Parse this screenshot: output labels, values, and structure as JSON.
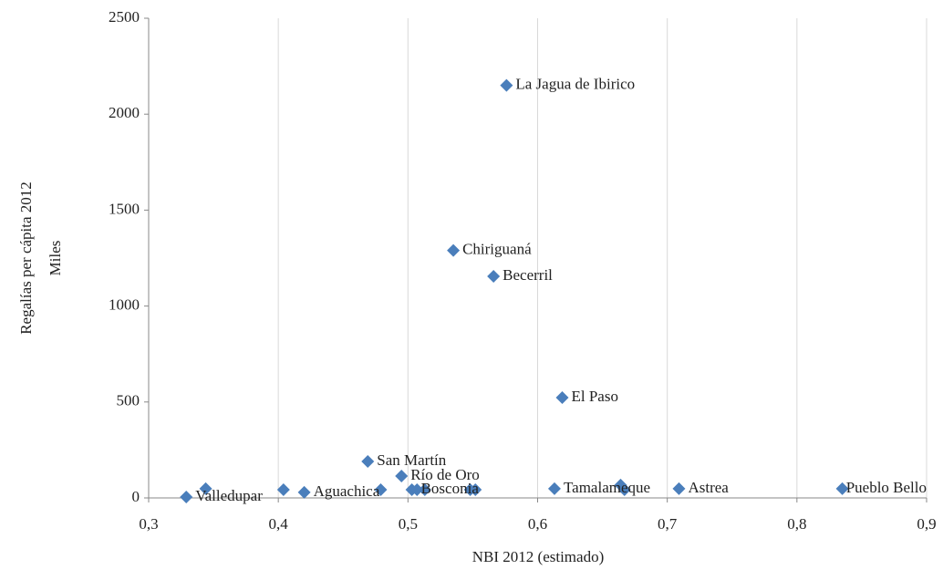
{
  "chart_data": {
    "type": "scatter",
    "x_label": "NBI 2012 (estimado)",
    "y_label": [
      "Regalías per cápita 2012",
      "Miles"
    ],
    "xlim": [
      0.3,
      0.9
    ],
    "xticks": [
      {
        "value": 0.3,
        "label": "0,3"
      },
      {
        "value": 0.4,
        "label": "0,4"
      },
      {
        "value": 0.5,
        "label": "0,5"
      },
      {
        "value": 0.6,
        "label": "0,6"
      },
      {
        "value": 0.7,
        "label": "0,7"
      },
      {
        "value": 0.8,
        "label": "0,8"
      },
      {
        "value": 0.9,
        "label": "0,9"
      }
    ],
    "ylim": [
      0,
      2500
    ],
    "yticks": [
      0,
      500,
      1000,
      1500,
      2000,
      2500
    ],
    "grid": "x",
    "color": "#4a7ebb",
    "x": [
      0.329,
      0.344,
      0.404,
      0.42,
      0.479,
      0.469,
      0.495,
      0.503,
      0.507,
      0.513,
      0.548,
      0.552,
      0.576,
      0.535,
      0.566,
      0.619,
      0.613,
      0.664,
      0.667,
      0.709,
      0.835
    ],
    "values": [
      5,
      48,
      43,
      29,
      43,
      190,
      114,
      43,
      43,
      43,
      43,
      43,
      2150,
      1290,
      1155,
      523,
      48,
      67,
      43,
      48,
      48
    ],
    "point_labels": [
      "Valledupar",
      null,
      null,
      "Aguachica",
      null,
      "San Martín",
      "Río de Oro",
      "Bosconia",
      null,
      null,
      null,
      null,
      "La Jagua de Ibirico",
      "Chiriguaná",
      "Becerril",
      "El Paso",
      "Tamalameque",
      null,
      null,
      "Astrea",
      "Pueblo Bello"
    ]
  }
}
